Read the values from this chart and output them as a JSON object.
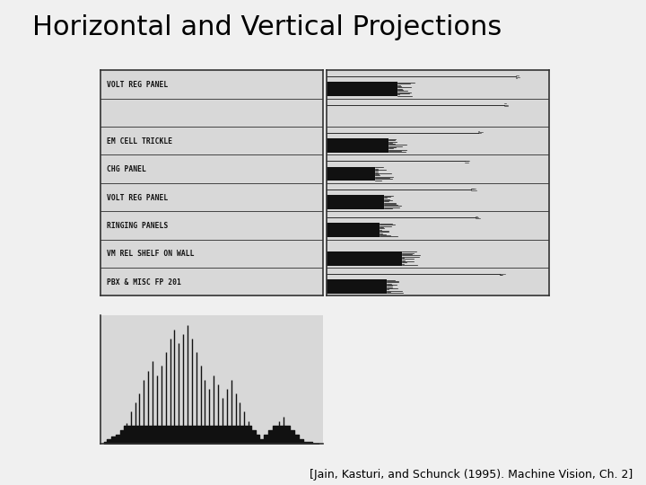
{
  "title": "Horizontal and Vertical Projections",
  "title_fontsize": 22,
  "citation": "[Jain, Kasturi, and Schunck (1995). Machine Vision, Ch. 2]",
  "citation_fontsize": 9,
  "bg_color": "#f0f0f0",
  "text_color": "#000000",
  "row_labels": [
    "VOLT REG PANEL",
    "",
    "EM CELL TRICKLE",
    "CHG PANEL",
    "VOLT REG PANEL",
    "RINGING PANELS",
    "VM REL SHELF ON WALL",
    "PBX & MISC FP 201"
  ],
  "horiz_bar_vals": [
    0.32,
    0.01,
    0.28,
    0.22,
    0.26,
    0.24,
    0.34,
    0.27
  ],
  "horiz_line_vals": [
    0.85,
    0.8,
    0.68,
    0.62,
    0.65,
    0.67,
    0.01,
    0.78
  ],
  "vert_proj_values": [
    1,
    2,
    3,
    4,
    6,
    9,
    14,
    18,
    22,
    28,
    32,
    36,
    30,
    34,
    40,
    46,
    50,
    44,
    48,
    52,
    46,
    40,
    34,
    28,
    24,
    30,
    26,
    20,
    24,
    28,
    22,
    18,
    14,
    10,
    6,
    4,
    2,
    4,
    6,
    8,
    10,
    12,
    8,
    6,
    4,
    2,
    1,
    1,
    0,
    0
  ]
}
